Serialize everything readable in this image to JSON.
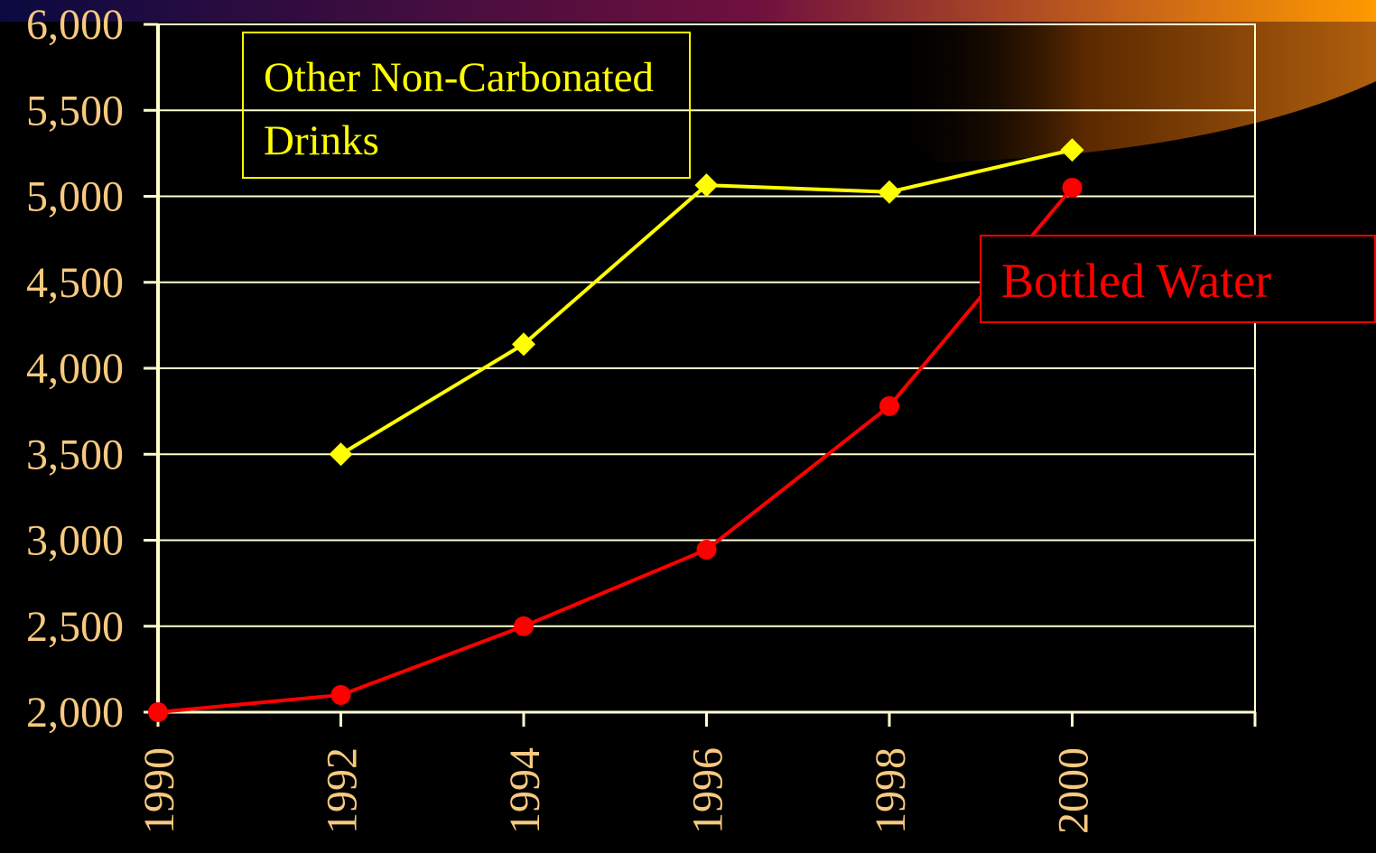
{
  "chart_data": {
    "type": "line",
    "x": [
      1990,
      1992,
      1994,
      1996,
      1998,
      2000
    ],
    "series": [
      {
        "name": "Other Non-Carbonated Drinks",
        "color": "#ffff00",
        "marker": "diamond",
        "values": [
          null,
          3500,
          4140,
          5065,
          5025,
          5270
        ]
      },
      {
        "name": "Bottled Water",
        "color": "#ff0000",
        "marker": "circle",
        "values": [
          2000,
          2100,
          2500,
          2945,
          3780,
          5050
        ]
      }
    ],
    "xlim": [
      1990,
      2002
    ],
    "xticks": [
      1990,
      1992,
      1994,
      1996,
      1998,
      2000
    ],
    "ylim": [
      2000,
      6000
    ],
    "yticks": [
      {
        "value": 2000,
        "label": "2,000"
      },
      {
        "value": 2500,
        "label": "2,500"
      },
      {
        "value": 3000,
        "label": "3,000"
      },
      {
        "value": 3500,
        "label": "3,500"
      },
      {
        "value": 4000,
        "label": "4,000"
      },
      {
        "value": 4500,
        "label": "4,500"
      },
      {
        "value": 5000,
        "label": "5,000"
      },
      {
        "value": 5500,
        "label": "5,500"
      },
      {
        "value": 6000,
        "label": "6,000"
      }
    ],
    "grid": true
  }
}
